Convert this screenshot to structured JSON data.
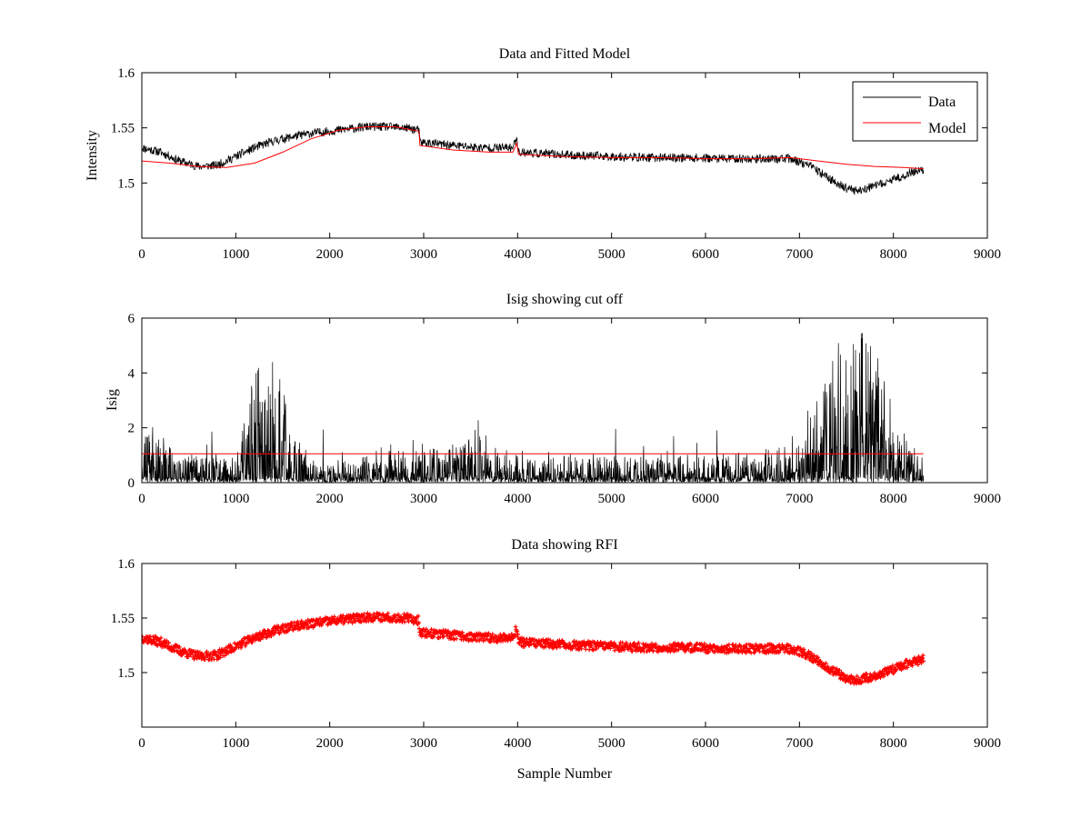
{
  "chart_data": [
    {
      "type": "line",
      "title": "Data and Fitted Model",
      "xlabel": "",
      "ylabel": "Intensity",
      "xlim": [
        0,
        9000
      ],
      "ylim": [
        1.45,
        1.6
      ],
      "xticks": [
        0,
        1000,
        2000,
        3000,
        4000,
        5000,
        6000,
        7000,
        8000,
        9000
      ],
      "xtick_labels": [
        "0",
        "1000",
        "2000",
        "3000",
        "4000",
        "5000",
        "6000",
        "7000",
        "8000",
        "9000"
      ],
      "yticks": [
        1.5,
        1.55,
        1.6
      ],
      "ytick_labels": [
        "1.5",
        "1.55",
        "1.6"
      ],
      "grid": false,
      "legend": {
        "position": "top-right",
        "entries": [
          "Data",
          "Model"
        ]
      },
      "series": [
        {
          "name": "Data",
          "color": "#000000",
          "style": "noisy-line",
          "noise": 0.004,
          "x": [
            0,
            200,
            400,
            600,
            800,
            1000,
            1200,
            1400,
            1600,
            1800,
            2000,
            2200,
            2400,
            2600,
            2800,
            2950,
            2960,
            3200,
            3600,
            3950,
            3990,
            4010,
            4200,
            4600,
            5000,
            5400,
            5800,
            6200,
            6600,
            6900,
            7100,
            7300,
            7500,
            7600,
            7800,
            8000,
            8200,
            8320
          ],
          "y": [
            1.532,
            1.528,
            1.52,
            1.515,
            1.516,
            1.524,
            1.532,
            1.538,
            1.542,
            1.545,
            1.547,
            1.549,
            1.551,
            1.551,
            1.55,
            1.548,
            1.537,
            1.535,
            1.532,
            1.532,
            1.542,
            1.528,
            1.527,
            1.525,
            1.524,
            1.523,
            1.523,
            1.522,
            1.522,
            1.522,
            1.516,
            1.505,
            1.495,
            1.493,
            1.497,
            1.503,
            1.51,
            1.512
          ]
        },
        {
          "name": "Model",
          "color": "#ff0000",
          "style": "line",
          "x": [
            0,
            300,
            600,
            900,
            1200,
            1500,
            1800,
            2100,
            2400,
            2700,
            2950,
            2960,
            3300,
            3700,
            3950,
            3990,
            4010,
            4500,
            5000,
            5500,
            6000,
            6500,
            6900,
            7200,
            7500,
            7800,
            8100,
            8320
          ],
          "y": [
            1.52,
            1.518,
            1.515,
            1.514,
            1.518,
            1.528,
            1.54,
            1.548,
            1.551,
            1.551,
            1.547,
            1.534,
            1.53,
            1.528,
            1.528,
            1.536,
            1.526,
            1.524,
            1.523,
            1.523,
            1.522,
            1.522,
            1.523,
            1.52,
            1.517,
            1.515,
            1.514,
            1.513
          ]
        }
      ]
    },
    {
      "type": "line",
      "title": "Isig showing cut off",
      "xlabel": "",
      "ylabel": "Isig",
      "xlim": [
        0,
        9000
      ],
      "ylim": [
        0,
        6
      ],
      "xticks": [
        0,
        1000,
        2000,
        3000,
        4000,
        5000,
        6000,
        7000,
        8000,
        9000
      ],
      "xtick_labels": [
        "0",
        "1000",
        "2000",
        "3000",
        "4000",
        "5000",
        "6000",
        "7000",
        "8000",
        "9000"
      ],
      "yticks": [
        0,
        2,
        4,
        6
      ],
      "ytick_labels": [
        "0",
        "2",
        "4",
        "6"
      ],
      "grid": false,
      "series": [
        {
          "color": "#000000",
          "style": "spiky-line",
          "x": [
            0,
            200,
            400,
            700,
            1000,
            1150,
            1300,
            1450,
            1600,
            1800,
            2000,
            2500,
            3000,
            3500,
            3700,
            4000,
            4500,
            5000,
            5500,
            6000,
            6500,
            6800,
            7000,
            7200,
            7400,
            7600,
            7800,
            8000,
            8200,
            8320
          ],
          "y": [
            1.0,
            0.9,
            0.6,
            0.5,
            0.5,
            1.8,
            2.5,
            2.2,
            1.0,
            0.5,
            0.4,
            0.6,
            0.6,
            0.9,
            0.9,
            0.5,
            0.5,
            0.5,
            0.5,
            0.5,
            0.6,
            0.7,
            1.0,
            1.8,
            2.3,
            3.0,
            2.5,
            1.5,
            0.6,
            0.5
          ]
        },
        {
          "color": "#ff0000",
          "style": "line",
          "x": [
            0,
            8320
          ],
          "y": [
            1.05,
            1.05
          ]
        }
      ]
    },
    {
      "type": "scatter",
      "title": "Data showing RFI",
      "xlabel": "Sample Number",
      "ylabel": "",
      "xlim": [
        0,
        9000
      ],
      "ylim": [
        1.45,
        1.6
      ],
      "xticks": [
        0,
        1000,
        2000,
        3000,
        4000,
        5000,
        6000,
        7000,
        8000,
        9000
      ],
      "xtick_labels": [
        "0",
        "1000",
        "2000",
        "3000",
        "4000",
        "5000",
        "6000",
        "7000",
        "8000",
        "9000"
      ],
      "yticks": [
        1.5,
        1.55,
        1.6
      ],
      "ytick_labels": [
        "1.5",
        "1.55",
        "1.6"
      ],
      "grid": false,
      "series": [
        {
          "color": "#ff0000",
          "style": "dense-markers",
          "noise": 0.004,
          "x": [
            0,
            200,
            400,
            600,
            800,
            1000,
            1200,
            1400,
            1600,
            1800,
            2000,
            2200,
            2400,
            2600,
            2800,
            2950,
            2960,
            3200,
            3600,
            3950,
            3990,
            4010,
            4200,
            4600,
            5000,
            5400,
            5800,
            6200,
            6600,
            6900,
            7100,
            7300,
            7500,
            7600,
            7800,
            8000,
            8200,
            8320
          ],
          "y": [
            1.532,
            1.528,
            1.52,
            1.515,
            1.516,
            1.524,
            1.532,
            1.538,
            1.542,
            1.545,
            1.547,
            1.549,
            1.551,
            1.551,
            1.55,
            1.548,
            1.537,
            1.535,
            1.532,
            1.532,
            1.542,
            1.528,
            1.527,
            1.525,
            1.524,
            1.523,
            1.523,
            1.522,
            1.522,
            1.522,
            1.516,
            1.505,
            1.495,
            1.493,
            1.497,
            1.503,
            1.51,
            1.512
          ]
        }
      ]
    }
  ]
}
